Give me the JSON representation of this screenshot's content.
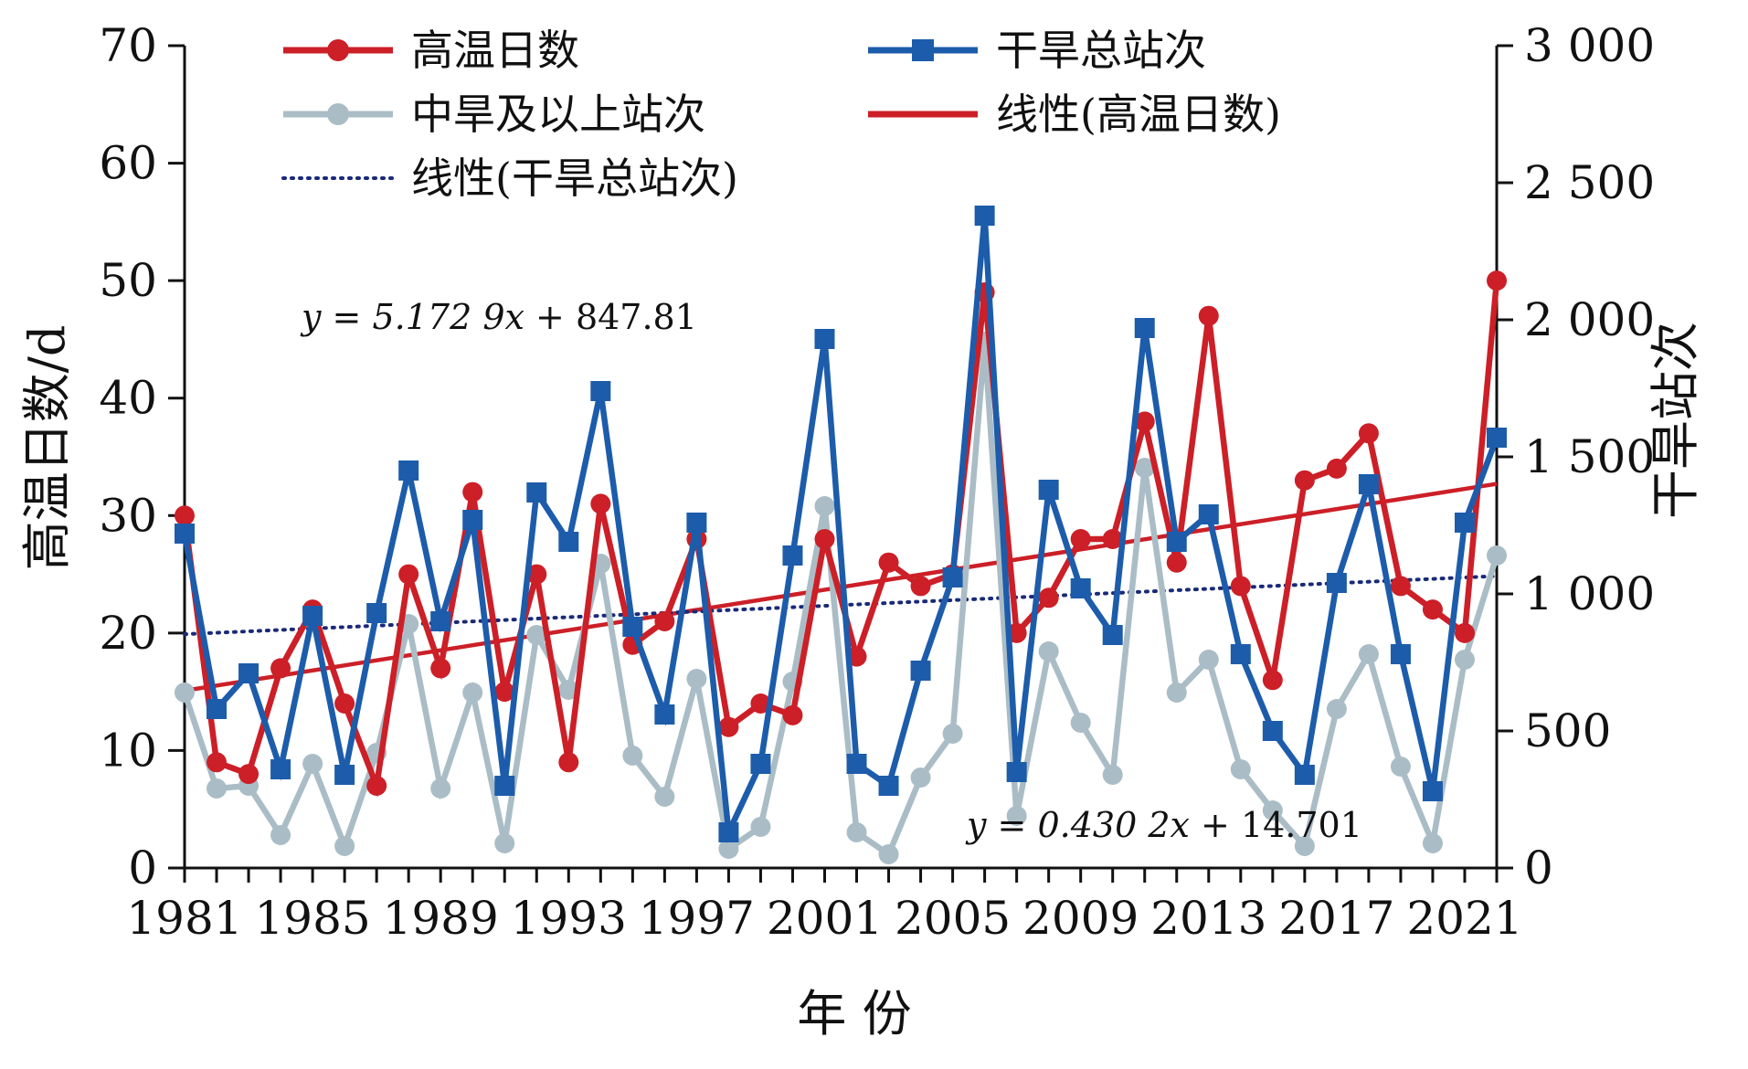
{
  "chart_data": {
    "type": "line",
    "xlabel": "年 份",
    "ylabel_left": "高温日数/d",
    "ylabel_right": "干旱站次",
    "x": [
      1981,
      1982,
      1983,
      1984,
      1985,
      1986,
      1987,
      1988,
      1989,
      1990,
      1991,
      1992,
      1993,
      1994,
      1995,
      1996,
      1997,
      1998,
      1999,
      2000,
      2001,
      2002,
      2003,
      2004,
      2005,
      2006,
      2007,
      2008,
      2009,
      2010,
      2011,
      2012,
      2013,
      2014,
      2015,
      2016,
      2017,
      2018,
      2019,
      2020,
      2021,
      2022
    ],
    "x_ticks": [
      "1981",
      "1985",
      "1989",
      "1993",
      "1997",
      "2001",
      "2005",
      "2009",
      "2013",
      "2017",
      "2021"
    ],
    "y_left_ticks": [
      "0",
      "10",
      "20",
      "30",
      "40",
      "50",
      "60",
      "70"
    ],
    "y_right_ticks": [
      "0",
      "500",
      "1 000",
      "1 500",
      "2 000",
      "2 500",
      "3 000"
    ],
    "ylim_left": [
      0,
      70
    ],
    "ylim_right": [
      0,
      3000
    ],
    "series": [
      {
        "name": "高温日数",
        "axis": "left",
        "color": "#cc1f27",
        "marker": "circle",
        "values": [
          30,
          9,
          8,
          17,
          22,
          14,
          7,
          25,
          17,
          32,
          15,
          25,
          9,
          31,
          19,
          21,
          28,
          12,
          14,
          13,
          28,
          18,
          26,
          24,
          25,
          49,
          20,
          23,
          28,
          28,
          38,
          26,
          47,
          24,
          16,
          33,
          34,
          37,
          24,
          22,
          20,
          50
        ]
      },
      {
        "name": "干旱总站次",
        "axis": "right",
        "color": "#1c5cab",
        "marker": "square",
        "values": [
          1220,
          580,
          710,
          360,
          920,
          340,
          930,
          1450,
          900,
          1270,
          300,
          1370,
          1190,
          1740,
          880,
          560,
          1260,
          130,
          380,
          1140,
          1930,
          380,
          300,
          720,
          1060,
          2380,
          350,
          1380,
          1020,
          850,
          1970,
          1190,
          1290,
          780,
          500,
          340,
          1040,
          1400,
          780,
          280,
          1260,
          1570
        ]
      },
      {
        "name": "中旱及以上站次",
        "axis": "right",
        "color": "#aabdc6",
        "marker": "circle",
        "values": [
          640,
          290,
          300,
          120,
          380,
          80,
          420,
          890,
          290,
          640,
          90,
          850,
          650,
          1110,
          410,
          260,
          690,
          70,
          150,
          680,
          1320,
          130,
          50,
          330,
          490,
          1920,
          190,
          790,
          530,
          340,
          1460,
          640,
          760,
          360,
          210,
          80,
          580,
          780,
          370,
          90,
          760,
          1140
        ]
      }
    ],
    "trendlines": [
      {
        "name": "线性(高温日数)",
        "axis": "left",
        "color": "#cc1f27",
        "style": "solid",
        "start": [
          1981,
          15.1
        ],
        "end": [
          2022,
          32.7
        ]
      },
      {
        "name": "线性(干旱总站次)",
        "axis": "right",
        "color": "#1a2a78",
        "style": "dotted",
        "start": [
          1981,
          853
        ],
        "end": [
          2022,
          1065
        ]
      }
    ],
    "annotations": [
      {
        "text_before": "y = 5.172 9",
        "text_var": "x",
        "text_after": " + 847.81"
      },
      {
        "text_before": "y = 0.430 2",
        "text_var": "x",
        "text_after": " + 14.701"
      }
    ],
    "legend": {
      "placement": "top",
      "items": [
        {
          "label": "高温日数",
          "color": "#cc1f27",
          "line": "solid",
          "marker": "circle"
        },
        {
          "label": "干旱总站次",
          "color": "#1c5cab",
          "line": "solid",
          "marker": "square"
        },
        {
          "label": "中旱及以上站次",
          "color": "#aabdc6",
          "line": "solid",
          "marker": "circle"
        },
        {
          "label": "线性(高温日数)",
          "color": "#cc1f27",
          "line": "solid",
          "marker": "none"
        },
        {
          "label": "线性(干旱总站次)",
          "color": "#1a2a78",
          "line": "dotted",
          "marker": "none"
        }
      ]
    },
    "grid": false
  }
}
